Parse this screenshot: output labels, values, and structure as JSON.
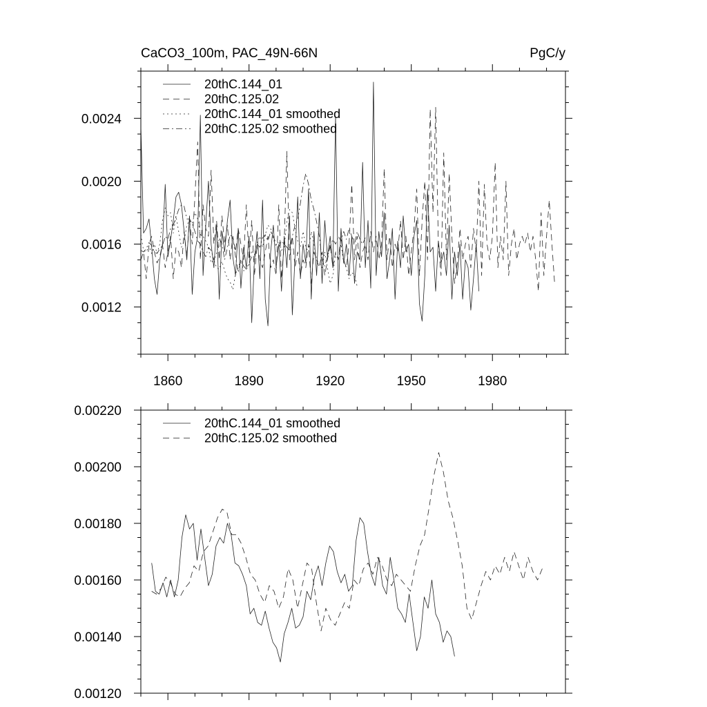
{
  "chart_data": [
    {
      "type": "line",
      "title_left": "CaCO3_100m, PAC_49N-66N",
      "title_right": "PgC/y",
      "xlabel": "",
      "ylabel": "",
      "xlim": [
        1850,
        2007
      ],
      "ylim": [
        0.0009,
        0.0027
      ],
      "x_ticks": [
        1860,
        1890,
        1920,
        1950,
        1980
      ],
      "x_tick_labels": [
        "1860",
        "1890",
        "1920",
        "1950",
        "1980"
      ],
      "y_ticks": [
        0.0012,
        0.0016,
        0.002,
        0.0024
      ],
      "y_tick_labels": [
        "0.0012",
        "0.0016",
        "0.0020",
        "0.0024"
      ],
      "legend_position": "top-left",
      "x_start": 1850,
      "x_step": 1,
      "series": [
        {
          "name": "20thC.144_01",
          "style": "solid",
          "values": [
            0.00235,
            0.00167,
            0.0017,
            0.00176,
            0.00158,
            0.00138,
            0.00128,
            0.0015,
            0.0016,
            0.00198,
            0.00152,
            0.00163,
            0.00175,
            0.0019,
            0.00193,
            0.00185,
            0.00168,
            0.0015,
            0.00178,
            0.00128,
            0.00155,
            0.00165,
            0.00242,
            0.0014,
            0.00172,
            0.002,
            0.0016,
            0.00145,
            0.00172,
            0.00125,
            0.00168,
            0.00155,
            0.00175,
            0.00188,
            0.00152,
            0.0014,
            0.0017,
            0.00132,
            0.00158,
            0.00145,
            0.00165,
            0.0011,
            0.0015,
            0.00168,
            0.00138,
            0.00188,
            0.00125,
            0.00108,
            0.00155,
            0.00172,
            0.00145,
            0.0016,
            0.0013,
            0.00165,
            0.00145,
            0.00178,
            0.00115,
            0.00152,
            0.0019,
            0.00138,
            0.0016,
            0.00148,
            0.00195,
            0.00125,
            0.00168,
            0.0014,
            0.0018,
            0.00135,
            0.00175,
            0.00152,
            0.00165,
            0.00145,
            0.00241,
            0.0013,
            0.0017,
            0.00148,
            0.0016,
            0.0014,
            0.00165,
            0.00135,
            0.00155,
            0.0015,
            0.00212,
            0.00145,
            0.00175,
            0.00132,
            0.00263,
            0.0014,
            0.00168,
            0.00152,
            0.0018,
            0.00138,
            0.0015,
            0.0017,
            0.00125,
            0.00162,
            0.00145,
            0.00178,
            0.00155,
            0.0016,
            0.0014,
            0.00165,
            0.00175,
            0.00122,
            0.00111,
            0.0014,
            0.00195,
            0.00155,
            0.00158,
            0.0013,
            0.00162,
            0.00148,
            0.00155,
            0.0014,
            0.00172,
            0.00125,
            0.00155,
            0.0014,
            0.0016,
            0.00125,
            0.0015,
            0.00145,
            0.00118,
            0.00138,
            0.0016,
            0.0013
          ]
        },
        {
          "name": "20thC.125.02",
          "style": "dashed",
          "values": [
            0.0015,
            0.00155,
            0.00138,
            0.0016,
            0.00165,
            0.00155,
            0.00148,
            0.00152,
            0.0016,
            0.00145,
            0.00155,
            0.00165,
            0.00138,
            0.00158,
            0.00155,
            0.00145,
            0.00168,
            0.00152,
            0.00175,
            0.0016,
            0.0019,
            0.00225,
            0.0015,
            0.00185,
            0.0017,
            0.00165,
            0.00207,
            0.0016,
            0.00175,
            0.0015,
            0.00178,
            0.0016,
            0.00172,
            0.0015,
            0.00165,
            0.00155,
            0.0017,
            0.0016,
            0.0015,
            0.00185,
            0.0015,
            0.00175,
            0.0014,
            0.0016,
            0.0015,
            0.00145,
            0.00155,
            0.00165,
            0.00145,
            0.0015,
            0.0014,
            0.00185,
            0.00138,
            0.0016,
            0.00219,
            0.0015,
            0.00165,
            0.00145,
            0.00155,
            0.0014,
            0.0015,
            0.00145,
            0.0016,
            0.00135,
            0.00155,
            0.0015,
            0.00145,
            0.00155,
            0.0014,
            0.0015,
            0.0016,
            0.00145,
            0.00155,
            0.0015,
            0.00165,
            0.0015,
            0.00145,
            0.0016,
            0.00198,
            0.0015,
            0.00165,
            0.00145,
            0.00155,
            0.0016,
            0.0015,
            0.00168,
            0.00155,
            0.00165,
            0.0015,
            0.0016,
            0.00208,
            0.0015,
            0.00165,
            0.00145,
            0.0016,
            0.00155,
            0.00175,
            0.0015,
            0.00165,
            0.0014,
            0.00155,
            0.0017,
            0.00195,
            0.0014,
            0.00175,
            0.002,
            0.0015,
            0.00246,
            0.0018,
            0.00247,
            0.0016,
            0.0014,
            0.00218,
            0.0015,
            0.00205,
            0.00165,
            0.00135,
            0.00148,
            0.0017,
            0.0015,
            0.0016,
            0.00165,
            0.00145,
            0.0017,
            0.00155,
            0.002,
            0.0014,
            0.00198,
            0.0016,
            0.0015,
            0.00165,
            0.00212,
            0.00145,
            0.00165,
            0.0015,
            0.002,
            0.0014,
            0.0016,
            0.0017,
            0.0015,
            0.0016,
            0.00165,
            0.0016,
            0.00167,
            0.00155,
            0.00165,
            0.0015,
            0.0013,
            0.0018,
            0.0014,
            0.00165,
            0.00188,
            0.0016,
            0.00135
          ]
        },
        {
          "name": "20thC.144_01 smoothed",
          "style": "dotted",
          "values": [
            0.00166,
            0.00156,
            0.00155,
            0.00159,
            0.00154,
            0.0016,
            0.00154,
            0.0016,
            0.00175,
            0.00183,
            0.00178,
            0.0018,
            0.00167,
            0.00178,
            0.00168,
            0.00158,
            0.00162,
            0.00172,
            0.00175,
            0.00173,
            0.0018,
            0.00176,
            0.00166,
            0.00165,
            0.00162,
            0.00158,
            0.00148,
            0.0015,
            0.00145,
            0.00144,
            0.00149,
            0.00143,
            0.00138,
            0.00136,
            0.00131,
            0.00141,
            0.00145,
            0.0015,
            0.00143,
            0.00144,
            0.00147,
            0.00156,
            0.00153,
            0.00161,
            0.00165,
            0.00158,
            0.00166,
            0.00172,
            0.0017,
            0.00163,
            0.00159,
            0.00162,
            0.00156,
            0.00158,
            0.00174,
            0.00182,
            0.0018,
            0.0017,
            0.00162,
            0.00158,
            0.00168,
            0.00158,
            0.00155,
            0.00168,
            0.0016,
            0.0015,
            0.00148,
            0.00145,
            0.00155,
            0.00145,
            0.00135,
            0.0014,
            0.00154,
            0.0015,
            0.0016,
            0.00148,
            0.00145,
            0.00138,
            0.00142,
            0.0014,
            0.00133
          ]
        },
        {
          "name": "20thC.125.02 smoothed",
          "style": "dashdot",
          "values": [
            0.00156,
            0.00155,
            0.00157,
            0.00161,
            0.00159,
            0.00155,
            0.00154,
            0.00157,
            0.00159,
            0.00165,
            0.00163,
            0.0017,
            0.00172,
            0.00177,
            0.00182,
            0.00185,
            0.00184,
            0.00176,
            0.00176,
            0.00173,
            0.00168,
            0.00162,
            0.0016,
            0.00155,
            0.00152,
            0.00158,
            0.00156,
            0.0015,
            0.00154,
            0.00164,
            0.0016,
            0.0015,
            0.00158,
            0.00166,
            0.00164,
            0.00152,
            0.00142,
            0.0015,
            0.00146,
            0.00144,
            0.00148,
            0.00152,
            0.0015,
            0.0016,
            0.00158,
            0.00164,
            0.00166,
            0.00162,
            0.00168,
            0.00165,
            0.0016,
            0.00158,
            0.00162,
            0.0016,
            0.00158,
            0.00156,
            0.00165,
            0.00172,
            0.00176,
            0.00186,
            0.00197,
            0.00205,
            0.00198,
            0.00188,
            0.00182,
            0.00174,
            0.00165,
            0.0015,
            0.00146,
            0.00152,
            0.00158,
            0.00163,
            0.0016,
            0.00165,
            0.00162,
            0.00168,
            0.00163,
            0.0017,
            0.00165,
            0.0016,
            0.00168,
            0.00163,
            0.0016,
            0.00164
          ]
        }
      ]
    },
    {
      "type": "line",
      "title_left": "",
      "title_right": "",
      "xlabel": "",
      "ylabel": "",
      "xlim": [
        1850,
        2007
      ],
      "ylim": [
        0.0012,
        0.0022
      ],
      "x_ticks": [
        1860,
        1890,
        1920,
        1950,
        1980
      ],
      "x_tick_labels": [],
      "y_ticks": [
        0.0012,
        0.0014,
        0.0016,
        0.0018,
        0.002,
        0.0022
      ],
      "y_tick_labels": [
        "0.00120",
        "0.00140",
        "0.00160",
        "0.00180",
        "0.00200",
        "0.00220"
      ],
      "legend_position": "top-left",
      "series": [
        {
          "name": "20thC.144_01 smoothed",
          "style": "solid",
          "x_start": 1854,
          "x_step": 1.4,
          "values": [
            0.00166,
            0.00156,
            0.00155,
            0.00159,
            0.00154,
            0.0016,
            0.00154,
            0.0016,
            0.00175,
            0.00183,
            0.00178,
            0.0018,
            0.00167,
            0.00178,
            0.00168,
            0.00158,
            0.00162,
            0.00172,
            0.00175,
            0.00173,
            0.0018,
            0.00176,
            0.00166,
            0.00165,
            0.00162,
            0.00158,
            0.00148,
            0.0015,
            0.00145,
            0.00144,
            0.00149,
            0.00143,
            0.00138,
            0.00136,
            0.00131,
            0.00141,
            0.00145,
            0.0015,
            0.00143,
            0.00144,
            0.00147,
            0.00156,
            0.00153,
            0.00161,
            0.00165,
            0.00158,
            0.00166,
            0.00172,
            0.0017,
            0.00163,
            0.00159,
            0.00162,
            0.00156,
            0.00158,
            0.00174,
            0.00182,
            0.0018,
            0.0017,
            0.00162,
            0.00158,
            0.00168,
            0.00158,
            0.00155,
            0.00168,
            0.0016,
            0.0015,
            0.00148,
            0.00145,
            0.00155,
            0.00145,
            0.00135,
            0.0014,
            0.00154,
            0.0015,
            0.0016,
            0.00148,
            0.00145,
            0.00138,
            0.00142,
            0.0014,
            0.00133
          ]
        },
        {
          "name": "20thC.125.02 smoothed",
          "style": "dashed",
          "x_start": 1854,
          "x_step": 1.74,
          "values": [
            0.00156,
            0.00155,
            0.00157,
            0.00161,
            0.00159,
            0.00155,
            0.00154,
            0.00157,
            0.00159,
            0.00165,
            0.00163,
            0.0017,
            0.00172,
            0.00177,
            0.00182,
            0.00185,
            0.00184,
            0.00176,
            0.00176,
            0.00173,
            0.00168,
            0.00162,
            0.0016,
            0.00155,
            0.00152,
            0.00158,
            0.00156,
            0.0015,
            0.00154,
            0.00164,
            0.0016,
            0.0015,
            0.00158,
            0.00166,
            0.00164,
            0.00152,
            0.00142,
            0.0015,
            0.00146,
            0.00144,
            0.00148,
            0.00152,
            0.0015,
            0.0016,
            0.00158,
            0.00164,
            0.00166,
            0.00162,
            0.00168,
            0.00165,
            0.0016,
            0.00158,
            0.00162,
            0.0016,
            0.00158,
            0.00156,
            0.00165,
            0.00172,
            0.00176,
            0.00186,
            0.00197,
            0.00205,
            0.00198,
            0.00188,
            0.00182,
            0.00174,
            0.00165,
            0.0015,
            0.00146,
            0.00152,
            0.00158,
            0.00163,
            0.0016,
            0.00165,
            0.00162,
            0.00168,
            0.00163,
            0.0017,
            0.00165,
            0.0016,
            0.00168,
            0.00163,
            0.0016,
            0.00164
          ]
        }
      ]
    }
  ]
}
